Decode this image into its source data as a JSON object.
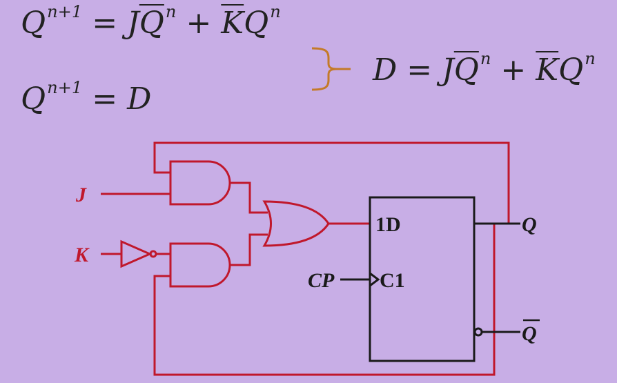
{
  "equations": {
    "eq1": {
      "lhs": "Q",
      "lhs_sup": "n+1",
      "eq": " = J",
      "q_bar": "Q",
      "q_bar_sup": "n",
      "plus": " + ",
      "k_bar": "K",
      "q": "Q",
      "q_sup": "n"
    },
    "eq2": {
      "lhs": "Q",
      "lhs_sup": "n+1",
      "rhs": " = D"
    },
    "eq3": {
      "lhs": "D = J",
      "q_bar": "Q",
      "q_bar_sup": "n",
      "plus": " + ",
      "k_bar": "K",
      "q": "Q",
      "q_sup": "n"
    }
  },
  "circuit": {
    "input_j": "J",
    "input_k": "K",
    "clock": "CP",
    "pin_d": "1D",
    "pin_c": "C1",
    "out_q": "Q",
    "out_qbar": "Q"
  },
  "colors": {
    "background": "#c8aee6",
    "wire": "#c0182c",
    "brace": "#c47a28",
    "component": "#1a1a1a"
  }
}
